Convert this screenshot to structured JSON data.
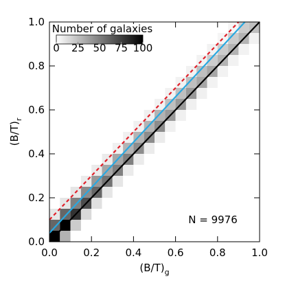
{
  "chart_data": {
    "type": "hist2d",
    "xlabel": {
      "text": "(B/T)",
      "sub": "g"
    },
    "ylabel": {
      "text": "(B/T)",
      "sub": "r"
    },
    "xlim": [
      0,
      1
    ],
    "ylim": [
      0,
      1
    ],
    "xticks": [
      {
        "value": 0,
        "label": "0.0"
      },
      0.2,
      0.4,
      0.6,
      0.8,
      {
        "value": 1,
        "label": "1.0"
      }
    ],
    "yticks": [
      {
        "value": 0,
        "label": "0.0"
      },
      0.2,
      0.4,
      0.6,
      0.8,
      {
        "value": 1,
        "label": "1.0"
      }
    ],
    "bin_width": 0.05,
    "cells": {
      "x": [
        0,
        0,
        0,
        0.05,
        0.05,
        0.05,
        0.05,
        0.1,
        0.1,
        0.1,
        0.1,
        0.15,
        0.15,
        0.15,
        0.15,
        0.2,
        0.2,
        0.2,
        0.2,
        0.25,
        0.25,
        0.25,
        0.25,
        0.3,
        0.3,
        0.3,
        0.3,
        0.35,
        0.35,
        0.35,
        0.35,
        0.4,
        0.4,
        0.4,
        0.4,
        0.45,
        0.45,
        0.45,
        0.45,
        0.5,
        0.5,
        0.5,
        0.5,
        0.55,
        0.55,
        0.55,
        0.55,
        0.6,
        0.6,
        0.6,
        0.6,
        0.65,
        0.65,
        0.65,
        0.65,
        0.7,
        0.7,
        0.7,
        0.7,
        0.75,
        0.75,
        0.75,
        0.75,
        0.8,
        0.8,
        0.8,
        0.8,
        0.85,
        0.85,
        0.85,
        0.85,
        0.9,
        0.9,
        0.9,
        0.95,
        0.95
      ],
      "y": [
        0,
        0.05,
        0.1,
        0,
        0.05,
        0.1,
        0.15,
        0.05,
        0.1,
        0.15,
        0.2,
        0.1,
        0.15,
        0.2,
        0.25,
        0.15,
        0.2,
        0.25,
        0.3,
        0.2,
        0.25,
        0.3,
        0.35,
        0.25,
        0.3,
        0.35,
        0.4,
        0.3,
        0.35,
        0.4,
        0.45,
        0.35,
        0.4,
        0.45,
        0.5,
        0.4,
        0.45,
        0.5,
        0.55,
        0.45,
        0.5,
        0.55,
        0.6,
        0.5,
        0.55,
        0.6,
        0.65,
        0.55,
        0.6,
        0.65,
        0.7,
        0.6,
        0.65,
        0.7,
        0.75,
        0.65,
        0.7,
        0.75,
        0.8,
        0.7,
        0.75,
        0.8,
        0.85,
        0.75,
        0.8,
        0.85,
        0.9,
        0.8,
        0.85,
        0.9,
        0.95,
        0.85,
        0.9,
        0.95,
        0.9,
        0.95
      ],
      "counts": [
        100,
        60,
        10,
        30,
        100,
        60,
        10,
        20,
        80,
        50,
        10,
        15,
        70,
        45,
        8,
        12,
        60,
        40,
        8,
        10,
        55,
        35,
        8,
        10,
        50,
        35,
        6,
        8,
        50,
        30,
        6,
        8,
        45,
        30,
        6,
        8,
        45,
        30,
        6,
        8,
        45,
        30,
        5,
        6,
        40,
        25,
        5,
        6,
        40,
        25,
        5,
        6,
        40,
        25,
        5,
        6,
        35,
        25,
        5,
        5,
        35,
        20,
        5,
        5,
        30,
        20,
        4,
        5,
        30,
        20,
        4,
        5,
        30,
        20,
        5,
        25
      ]
    },
    "colorbar": {
      "title": "Number of galaxies",
      "clim": [
        0,
        100
      ],
      "ticks": [
        0,
        25,
        50,
        75,
        100
      ]
    },
    "series": [
      {
        "color": "#000000",
        "dash": false,
        "x": [
          0,
          1
        ],
        "values": [
          0,
          1
        ]
      },
      {
        "color": "#29a8e0",
        "dash": false,
        "x": [
          0,
          0.93
        ],
        "values": [
          0.04,
          1
        ]
      },
      {
        "color": "#e0202a",
        "dash": true,
        "x": [
          0,
          0.9
        ],
        "values": [
          0.1,
          1
        ]
      }
    ],
    "annotation": "N = 9976"
  }
}
